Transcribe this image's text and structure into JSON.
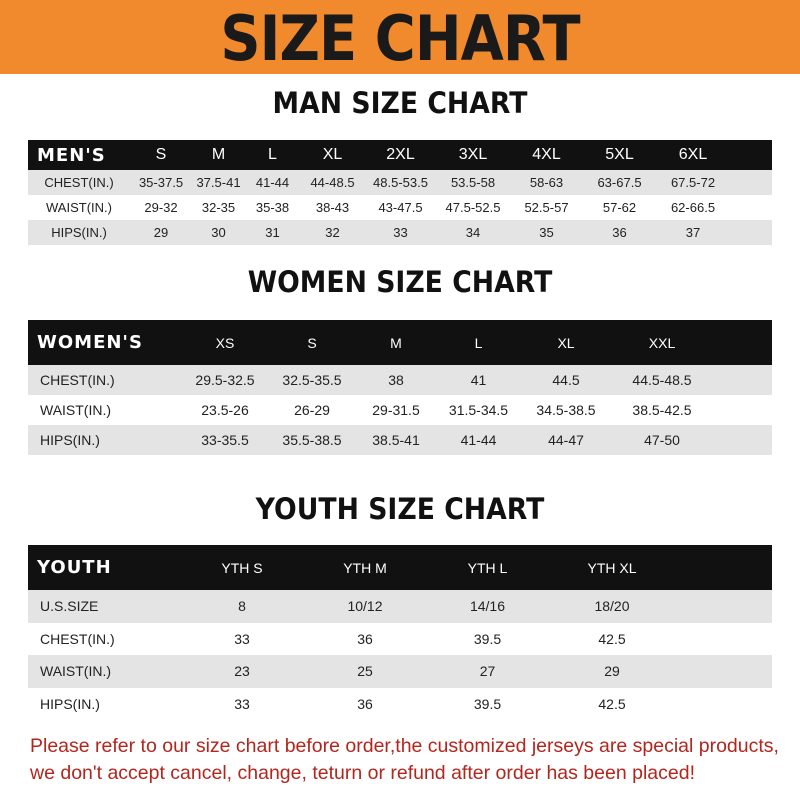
{
  "banner": {
    "title": "SIZE CHART",
    "color": "#f08a2c"
  },
  "men": {
    "title": "MAN SIZE CHART",
    "header": [
      "MEN'S",
      "S",
      "M",
      "L",
      "XL",
      "2XL",
      "3XL",
      "4XL",
      "5XL",
      "6XL"
    ],
    "rows": [
      [
        "CHEST(IN.)",
        "35-37.5",
        "37.5-41",
        "41-44",
        "44-48.5",
        "48.5-53.5",
        "53.5-58",
        "58-63",
        "63-67.5",
        "67.5-72"
      ],
      [
        "WAIST(IN.)",
        "29-32",
        "32-35",
        "35-38",
        "38-43",
        "43-47.5",
        "47.5-52.5",
        "52.5-57",
        "57-62",
        "62-66.5"
      ],
      [
        "HIPS(IN.)",
        "29",
        "30",
        "31",
        "32",
        "33",
        "34",
        "35",
        "36",
        "37"
      ]
    ]
  },
  "women": {
    "title": "WOMEN SIZE CHART",
    "header": [
      "WOMEN'S",
      "XS",
      "S",
      "M",
      "L",
      "XL",
      "XXL"
    ],
    "rows": [
      [
        "CHEST(IN.)",
        "29.5-32.5",
        "32.5-35.5",
        "38",
        "41",
        "44.5",
        "44.5-48.5"
      ],
      [
        "WAIST(IN.)",
        "23.5-26",
        "26-29",
        "29-31.5",
        "31.5-34.5",
        "34.5-38.5",
        "38.5-42.5"
      ],
      [
        "HIPS(IN.)",
        "33-35.5",
        "35.5-38.5",
        "38.5-41",
        "41-44",
        "44-47",
        "47-50"
      ]
    ]
  },
  "youth": {
    "title": "YOUTH SIZE CHART",
    "header": [
      "YOUTH",
      "YTH S",
      "YTH M",
      "YTH L",
      "YTH XL"
    ],
    "rows": [
      [
        "U.S.SIZE",
        "8",
        "10/12",
        "14/16",
        "18/20"
      ],
      [
        "CHEST(IN.)",
        "33",
        "36",
        "39.5",
        "42.5"
      ],
      [
        "WAIST(IN.)",
        "23",
        "25",
        "27",
        "29"
      ],
      [
        "HIPS(IN.)",
        "33",
        "36",
        "39.5",
        "42.5"
      ]
    ]
  },
  "notice": {
    "line1": "Please refer to our size chart before order,the customized jerseys are special products,",
    "line2": "we don't accept cancel, change, teturn or refund after order has been placed!",
    "color": "#b3261e"
  }
}
